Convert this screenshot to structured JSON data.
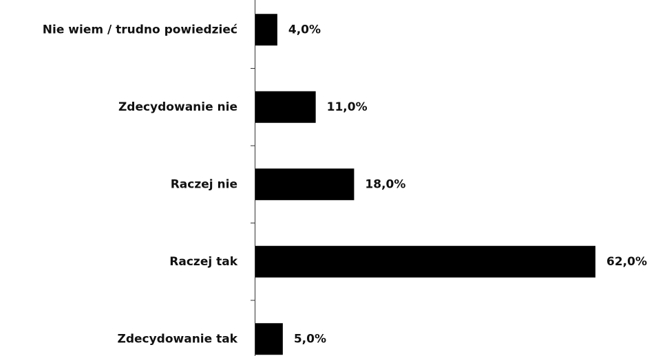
{
  "chart_data": {
    "type": "bar",
    "orientation": "horizontal",
    "categories": [
      "Nie wiem / trudno powiedzieć",
      "Zdecydowanie nie",
      "Raczej nie",
      "Raczej tak",
      "Zdecydowanie tak"
    ],
    "values": [
      4,
      11,
      18,
      62,
      5
    ],
    "value_labels": [
      "4,0%",
      "11,0%",
      "18,0%",
      "62,0%",
      "5,0%"
    ],
    "color": "#000000"
  }
}
